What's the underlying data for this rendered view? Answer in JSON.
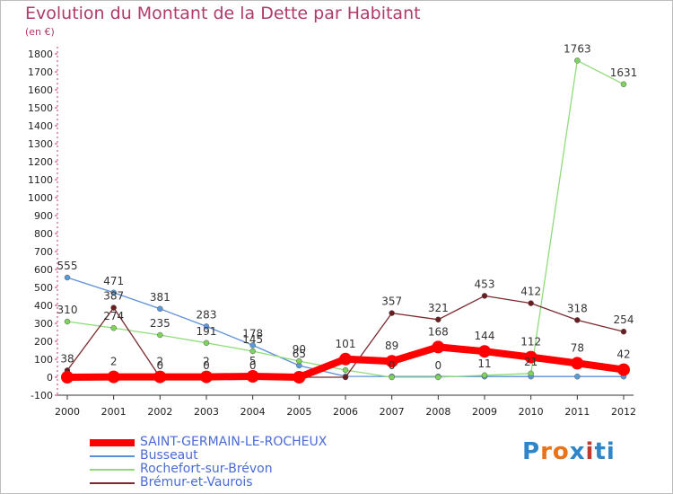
{
  "title": "Evolution du Montant de la Dette par Habitant",
  "unit": "(en €)",
  "logo": {
    "text": "Proxiti",
    "colors": [
      "#2e86c9",
      "#e8731a",
      "#e8731a",
      "#2e86c9",
      "#c0392b",
      "#2e86c9",
      "#2e86c9"
    ]
  },
  "chart_data": {
    "type": "line",
    "x": [
      "2000",
      "2001",
      "2002",
      "2003",
      "2004",
      "2005",
      "2006",
      "2007",
      "2008",
      "2009",
      "2010",
      "2011",
      "2012"
    ],
    "ylim": [
      -100,
      1800
    ],
    "yticks": [
      "-100",
      "0",
      "100",
      "200",
      "300",
      "400",
      "500",
      "600",
      "700",
      "800",
      "900",
      "1000",
      "1100",
      "1200",
      "1300",
      "1400",
      "1500",
      "1600",
      "1700",
      "1800"
    ],
    "grid": false,
    "legend_position": "bottom-left",
    "series": [
      {
        "name": "Busseaut",
        "color": "#5b8fd6",
        "marker": "#5b9bd5",
        "values": [
          555,
          471,
          381,
          283,
          178,
          65,
          5,
          4,
          4,
          4,
          4,
          4,
          4
        ],
        "labels": [
          "555",
          "471",
          "381",
          "283",
          "178",
          "65",
          "",
          "",
          "",
          "",
          "",
          "",
          ""
        ]
      },
      {
        "name": "Rochefort-sur-Brévon",
        "color": "#8fdc7a",
        "marker": "#7dd35e",
        "values": [
          310,
          274,
          235,
          191,
          145,
          90,
          40,
          0,
          0,
          11,
          21,
          1763,
          1631
        ],
        "labels": [
          "310",
          "274",
          "235",
          "191",
          "145",
          "90",
          "",
          "0",
          "0",
          "11",
          "21",
          "1763",
          "1631"
        ]
      },
      {
        "name": "Brémur-et-Vaurois",
        "color": "#7a2a2e",
        "marker": "#6b1c20",
        "values": [
          38,
          387,
          0,
          0,
          0,
          0,
          0,
          357,
          321,
          453,
          412,
          318,
          254
        ],
        "labels": [
          "38",
          "387",
          "0",
          "0",
          "0",
          "",
          "",
          "357",
          "321",
          "453",
          "412",
          "318",
          "254"
        ]
      },
      {
        "name": "SAINT-GERMAIN-LE-ROCHEUX",
        "color": "#ff0000",
        "marker": "#ff0000",
        "thick": true,
        "values": [
          0,
          2,
          2,
          2,
          5,
          0,
          101,
          89,
          168,
          144,
          112,
          78,
          42
        ],
        "labels": [
          "",
          "2",
          "2",
          "2",
          "5",
          "",
          "101",
          "89",
          "168",
          "144",
          "112",
          "78",
          "42"
        ]
      }
    ],
    "legend_order": [
      3,
      0,
      1,
      2
    ]
  }
}
